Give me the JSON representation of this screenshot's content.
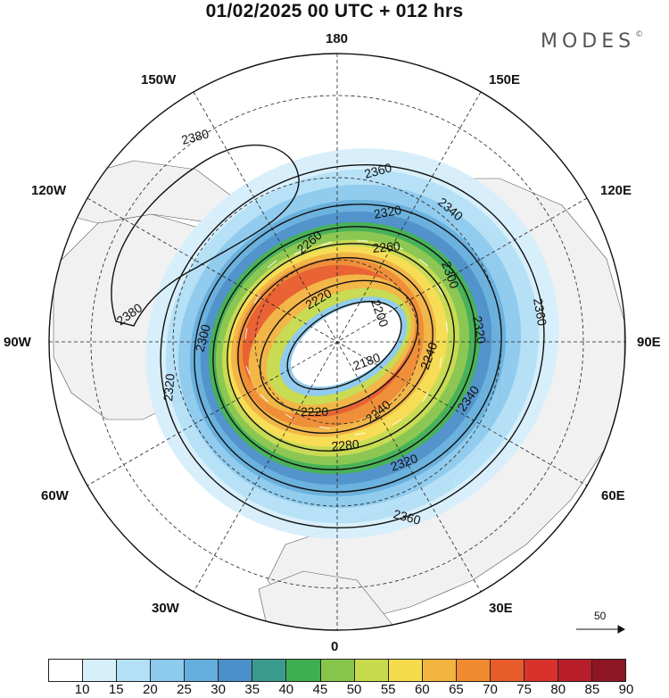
{
  "title": "01/02/2025  00 UTC  + 012 hrs",
  "brand": {
    "name": "MODES",
    "mark": "©"
  },
  "longitude_labels": {
    "top": "180",
    "bottom": "0",
    "left": "90W",
    "right": "90E",
    "upper_left_1": "150W",
    "upper_left_2": "120W",
    "upper_right_1": "150E",
    "upper_right_2": "120E",
    "lower_left_1": "60W",
    "lower_left_2": "30W",
    "lower_right_1": "60E",
    "lower_right_2": "30E"
  },
  "contour_labels": [
    "2380",
    "2380",
    "2360",
    "2360",
    "2360",
    "2340",
    "2320",
    "2320",
    "2320",
    "2300",
    "2300",
    "2280",
    "2260",
    "2260",
    "2240",
    "2240",
    "2220",
    "2220",
    "2200",
    "2180",
    "2340",
    "2320"
  ],
  "wind_scale": {
    "label": "50"
  },
  "colorbar": {
    "labels": [
      "10",
      "15",
      "20",
      "25",
      "30",
      "35",
      "40",
      "45",
      "50",
      "55",
      "60",
      "65",
      "70",
      "75",
      "80",
      "85",
      "90"
    ],
    "colors": [
      "#ffffff",
      "#d6effb",
      "#b3e0f6",
      "#8ccaee",
      "#64aedd",
      "#4a8fca",
      "#3b9a8e",
      "#3fae50",
      "#86c54a",
      "#c6da4b",
      "#f6dc4c",
      "#f3b33f",
      "#ef8a30",
      "#e85b2a",
      "#d8322a",
      "#b71e2a",
      "#8e1623"
    ]
  }
}
